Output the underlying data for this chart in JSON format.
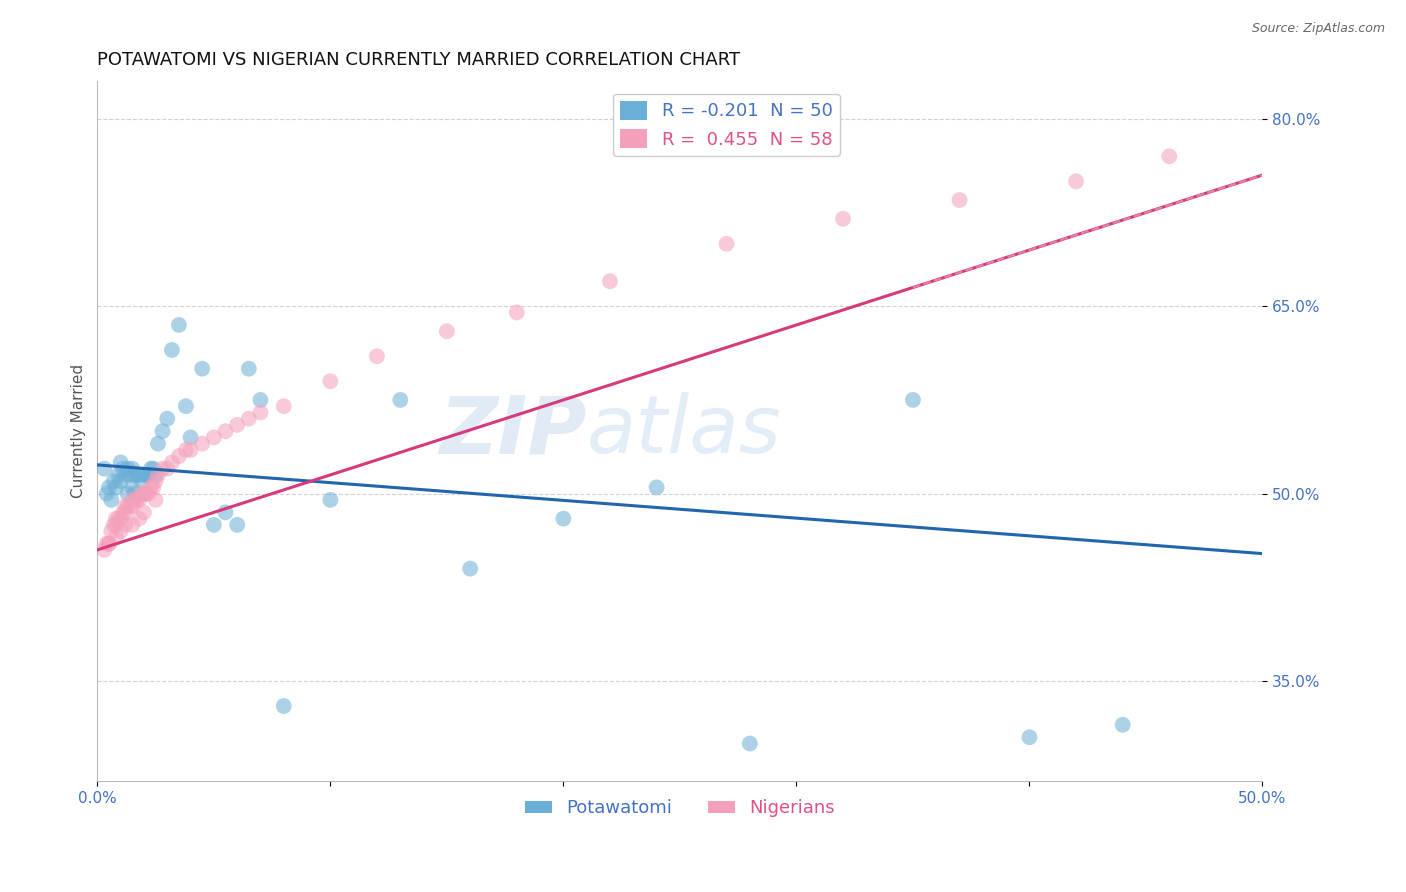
{
  "title": "POTAWATOMI VS NIGERIAN CURRENTLY MARRIED CORRELATION CHART",
  "ylabel": "Currently Married",
  "source_text": "Source: ZipAtlas.com",
  "watermark": "ZIPatlas",
  "xlim": [
    0.0,
    0.5
  ],
  "ylim": [
    0.27,
    0.83
  ],
  "xticks": [
    0.0,
    0.1,
    0.2,
    0.3,
    0.4,
    0.5
  ],
  "xtick_labels": [
    "0.0%",
    "",
    "",
    "",
    "",
    "50.0%"
  ],
  "ytick_vals": [
    0.35,
    0.5,
    0.65,
    0.8
  ],
  "ytick_labels": [
    "35.0%",
    "50.0%",
    "65.0%",
    "80.0%"
  ],
  "potawatomi_R": -0.201,
  "potawatomi_N": 50,
  "nigerian_R": 0.455,
  "nigerian_N": 58,
  "potawatomi_color": "#6baed6",
  "nigerian_color": "#f4a0bb",
  "potawatomi_line_color": "#2166ac",
  "nigerian_line_color": "#d63a7a",
  "nigerian_dash_color": "#e8a0c0",
  "title_fontsize": 13,
  "axis_label_fontsize": 11,
  "tick_fontsize": 11,
  "legend_fontsize": 13,
  "potawatomi_x": [
    0.003,
    0.004,
    0.005,
    0.006,
    0.007,
    0.008,
    0.009,
    0.01,
    0.01,
    0.011,
    0.012,
    0.013,
    0.013,
    0.014,
    0.015,
    0.015,
    0.016,
    0.016,
    0.017,
    0.018,
    0.019,
    0.02,
    0.021,
    0.022,
    0.023,
    0.024,
    0.025,
    0.026,
    0.028,
    0.03,
    0.032,
    0.035,
    0.038,
    0.04,
    0.045,
    0.05,
    0.055,
    0.06,
    0.065,
    0.07,
    0.08,
    0.1,
    0.13,
    0.16,
    0.2,
    0.24,
    0.28,
    0.35,
    0.4,
    0.44
  ],
  "potawatomi_y": [
    0.52,
    0.5,
    0.505,
    0.495,
    0.51,
    0.505,
    0.515,
    0.51,
    0.525,
    0.52,
    0.515,
    0.52,
    0.5,
    0.515,
    0.52,
    0.505,
    0.515,
    0.5,
    0.515,
    0.515,
    0.51,
    0.515,
    0.515,
    0.515,
    0.52,
    0.52,
    0.515,
    0.54,
    0.55,
    0.56,
    0.615,
    0.635,
    0.57,
    0.545,
    0.6,
    0.475,
    0.485,
    0.475,
    0.6,
    0.575,
    0.33,
    0.495,
    0.575,
    0.44,
    0.48,
    0.505,
    0.3,
    0.575,
    0.305,
    0.315
  ],
  "nigerian_x": [
    0.003,
    0.004,
    0.005,
    0.006,
    0.007,
    0.008,
    0.008,
    0.009,
    0.01,
    0.011,
    0.012,
    0.012,
    0.013,
    0.014,
    0.015,
    0.015,
    0.016,
    0.017,
    0.018,
    0.019,
    0.02,
    0.021,
    0.022,
    0.023,
    0.024,
    0.025,
    0.026,
    0.028,
    0.03,
    0.032,
    0.035,
    0.038,
    0.04,
    0.045,
    0.05,
    0.055,
    0.06,
    0.065,
    0.07,
    0.08,
    0.1,
    0.12,
    0.15,
    0.18,
    0.22,
    0.27,
    0.32,
    0.37,
    0.42,
    0.46,
    0.005,
    0.008,
    0.01,
    0.012,
    0.015,
    0.018,
    0.02,
    0.025
  ],
  "nigerian_y": [
    0.455,
    0.46,
    0.46,
    0.47,
    0.475,
    0.475,
    0.48,
    0.48,
    0.48,
    0.485,
    0.485,
    0.49,
    0.49,
    0.49,
    0.49,
    0.495,
    0.495,
    0.495,
    0.495,
    0.5,
    0.5,
    0.5,
    0.5,
    0.505,
    0.505,
    0.51,
    0.515,
    0.52,
    0.52,
    0.525,
    0.53,
    0.535,
    0.535,
    0.54,
    0.545,
    0.55,
    0.555,
    0.56,
    0.565,
    0.57,
    0.59,
    0.61,
    0.63,
    0.645,
    0.67,
    0.7,
    0.72,
    0.735,
    0.75,
    0.77,
    0.46,
    0.465,
    0.47,
    0.475,
    0.475,
    0.48,
    0.485,
    0.495
  ],
  "background_color": "#ffffff",
  "grid_color": "#cccccc",
  "blue_line_x0": 0.0,
  "blue_line_y0": 0.523,
  "blue_line_x1": 0.5,
  "blue_line_y1": 0.452,
  "pink_line_x0": 0.0,
  "pink_line_y0": 0.455,
  "pink_line_x1": 0.5,
  "pink_line_y1": 0.755
}
